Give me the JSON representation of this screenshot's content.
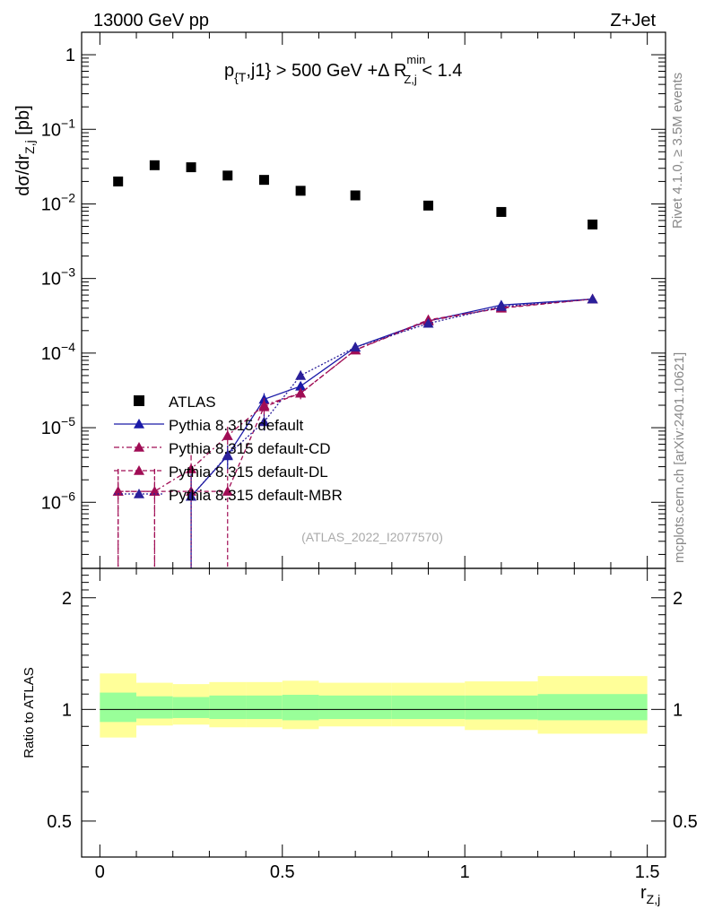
{
  "header": {
    "energy_label": "13000 GeV pp",
    "process_label": "Z+Jet"
  },
  "cut_label": {
    "p": "p",
    "p_sub": "{T",
    "p_rest": ",j1} > 500 GeV +Δ R",
    "r_sup": "min",
    "r_sub": "Z,j",
    "tail": " < 1.4"
  },
  "side_labels": {
    "rivet": "Rivet 4.1.0, ≥ 3.5M events",
    "mcplots": "mcplots.cern.ch [arXiv:2401.10621]"
  },
  "watermark": "(ATLAS_2022_I2077570)",
  "ratio_ylabel": "Ratio to ATLAS",
  "colors": {
    "data": "#000000",
    "default": "#1a1aa8",
    "cd": "#a00d55",
    "dl": "#a00d55",
    "mbr": "#2a1f9a",
    "band_inner": "#99ff99",
    "band_outer": "#ffff99"
  },
  "chart_data": [
    {
      "type": "scatter",
      "panel": "main",
      "title": "",
      "ylabel_main": "dσ/dr",
      "ylabel_sub": "Z,j",
      "ylabel_unit": " [pb]",
      "xlabel_main": "r",
      "xlabel_sub": "Z,j",
      "log_y": true,
      "xlim": [
        -0.05,
        1.55
      ],
      "ylim": [
        1.3e-07,
        2.0
      ],
      "y_ticks": [
        {
          "value": 1,
          "base": "1",
          "exp": ""
        },
        {
          "value": 0.1,
          "base": "10",
          "exp": "−1"
        },
        {
          "value": 0.01,
          "base": "10",
          "exp": "−2"
        },
        {
          "value": 0.001,
          "base": "10",
          "exp": "−3"
        },
        {
          "value": 0.0001,
          "base": "10",
          "exp": "−4"
        },
        {
          "value": 1e-05,
          "base": "10",
          "exp": "−5"
        },
        {
          "value": 1e-06,
          "base": "10",
          "exp": "−6"
        }
      ],
      "legend": [
        "ATLAS",
        "Pythia 8.315 default",
        "Pythia 8.315 default-CD",
        "Pythia 8.315 default-DL",
        "Pythia 8.315 default-MBR"
      ],
      "data": {
        "name": "ATLAS",
        "x": [
          0.05,
          0.15,
          0.25,
          0.35,
          0.45,
          0.55,
          0.7,
          0.9,
          1.1,
          1.35
        ],
        "y": [
          0.02,
          0.033,
          0.031,
          0.024,
          0.021,
          0.015,
          0.013,
          0.0095,
          0.0078,
          0.0053
        ]
      },
      "series": [
        {
          "name": "Pythia 8.315 default",
          "key": "default",
          "dash": "",
          "x": [
            0.25,
            0.35,
            0.45,
            0.55,
            0.7,
            0.9,
            1.1,
            1.35
          ],
          "y": [
            1.2e-06,
            4.2e-06,
            2.4e-05,
            3.6e-05,
            0.00012,
            0.00027,
            0.00044,
            0.00053
          ],
          "err_lo": [
            1.1e-06,
            1.5e-06,
            5e-06,
            5e-06,
            1e-05,
            2e-05,
            3e-05,
            3e-05
          ],
          "err_hi": [
            1.2e-06,
            1.5e-06,
            5e-06,
            5e-06,
            1e-05,
            2e-05,
            3e-05,
            3e-05
          ]
        },
        {
          "name": "Pythia 8.315 default-CD",
          "key": "cd",
          "dash": "6,3,2,3",
          "x": [
            0.05,
            0.15,
            0.25,
            0.35,
            0.45,
            0.55,
            0.7,
            0.9,
            1.1,
            1.35
          ],
          "y": [
            1.4e-06,
            1.4e-06,
            2.8e-06,
            7.8e-06,
            2e-05,
            2.9e-05,
            0.00011,
            0.00027,
            0.00041,
            0.00053
          ],
          "err_lo": [
            1.3e-06,
            1.3e-06,
            1.5e-06,
            2.5e-06,
            5e-06,
            5e-06,
            1e-05,
            2e-05,
            3e-05,
            3e-05
          ],
          "err_hi": [
            1.4e-06,
            1.4e-06,
            1.5e-06,
            2.5e-06,
            5e-06,
            5e-06,
            1e-05,
            2e-05,
            3e-05,
            3e-05
          ]
        },
        {
          "name": "Pythia 8.315 default-DL",
          "key": "dl",
          "dash": "5,3",
          "x": [
            0.05,
            0.15,
            0.25,
            0.35,
            0.45,
            0.55,
            0.7,
            0.9,
            1.1,
            1.35
          ],
          "y": [
            1.4e-06,
            1.4e-06,
            1.4e-06,
            1.4e-06,
            1.9e-05,
            2.9e-05,
            0.00011,
            0.00028,
            0.0004,
            0.00053
          ],
          "err_lo": [
            1.3e-06,
            1.3e-06,
            1.3e-06,
            1.3e-06,
            5e-06,
            5e-06,
            1e-05,
            2e-05,
            3e-05,
            3e-05
          ],
          "err_hi": [
            1.4e-06,
            1.4e-06,
            1.4e-06,
            1.4e-06,
            5e-06,
            5e-06,
            1e-05,
            2e-05,
            3e-05,
            3e-05
          ]
        },
        {
          "name": "Pythia 8.315 default-MBR",
          "key": "mbr",
          "dash": "2,2",
          "x": [
            0.25,
            0.35,
            0.45,
            0.55,
            0.7,
            0.9,
            1.1,
            1.35
          ],
          "y": [
            1.2e-06,
            4.3e-06,
            1.2e-05,
            5e-05,
            0.00012,
            0.00025,
            0.00042,
            0.00053
          ],
          "err_lo": [
            1.1e-06,
            1.5e-06,
            3e-06,
            8e-06,
            1e-05,
            2e-05,
            3e-05,
            3e-05
          ],
          "err_hi": [
            1.2e-06,
            1.5e-06,
            3e-06,
            8e-06,
            1e-05,
            2e-05,
            3e-05,
            3e-05
          ]
        }
      ]
    },
    {
      "type": "area",
      "panel": "ratio",
      "ylabel": "Ratio to ATLAS",
      "xlim": [
        -0.05,
        1.55
      ],
      "ylim": [
        0.4,
        2.4
      ],
      "log_y": true,
      "y_ticks": [
        0.5,
        1,
        2
      ],
      "y_tick_labels": [
        "0.5",
        "1",
        "2"
      ],
      "x_ticks": [
        0,
        0.5,
        1,
        1.5
      ],
      "x_tick_labels": [
        "0",
        "0.5",
        "1",
        "1.5"
      ],
      "bins": [
        0.0,
        0.1,
        0.2,
        0.3,
        0.4,
        0.5,
        0.6,
        0.8,
        1.0,
        1.2,
        1.5
      ],
      "inner_lo": [
        0.925,
        0.945,
        0.948,
        0.942,
        0.942,
        0.935,
        0.942,
        0.942,
        0.94,
        0.935
      ],
      "inner_hi": [
        1.11,
        1.085,
        1.08,
        1.09,
        1.09,
        1.095,
        1.09,
        1.09,
        1.09,
        1.1
      ],
      "outer_lo": [
        0.84,
        0.905,
        0.91,
        0.895,
        0.895,
        0.885,
        0.9,
        0.9,
        0.88,
        0.86
      ],
      "outer_hi": [
        1.25,
        1.18,
        1.17,
        1.185,
        1.185,
        1.195,
        1.18,
        1.18,
        1.19,
        1.23
      ],
      "reference": 1
    }
  ]
}
